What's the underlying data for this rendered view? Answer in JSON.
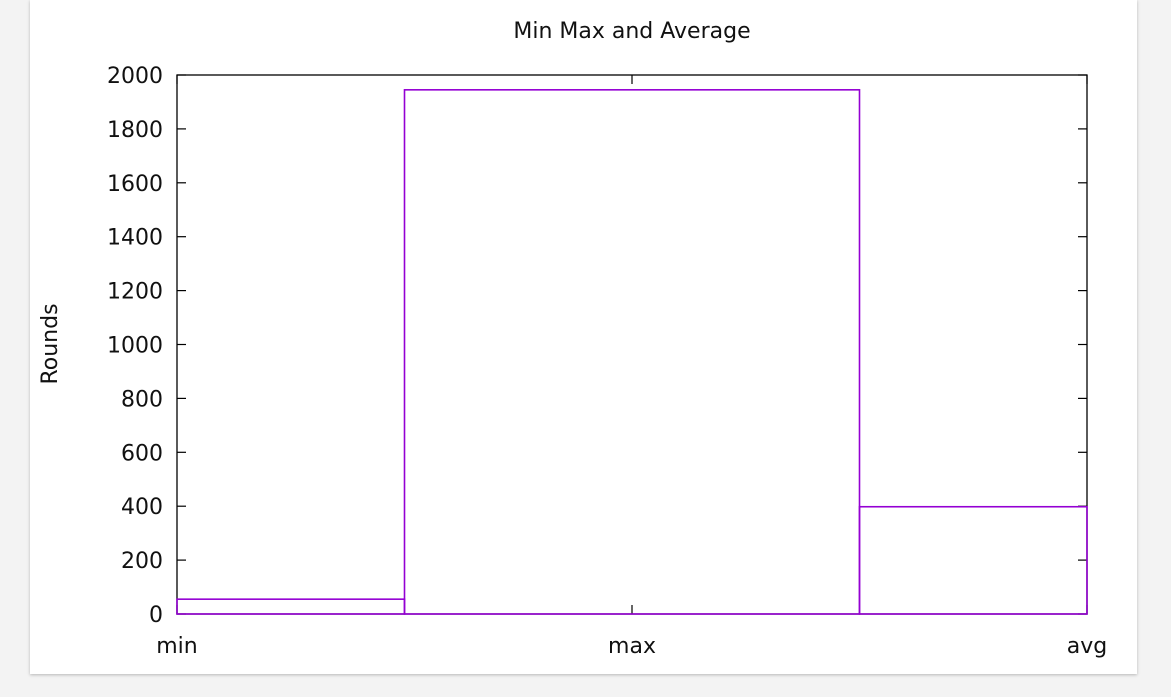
{
  "chart_data": {
    "type": "bar",
    "title": "Min Max and Average",
    "xlabel": "",
    "ylabel": "Rounds",
    "categories": [
      "min",
      "max",
      "avg"
    ],
    "values": [
      55,
      1945,
      398
    ],
    "ylim": [
      0,
      2000
    ],
    "yticks": [
      "0",
      "200",
      "400",
      "600",
      "800",
      "1000",
      "1200",
      "1400",
      "1600",
      "1800",
      "2000"
    ],
    "grid": false,
    "bar_color": "#9400d3"
  }
}
